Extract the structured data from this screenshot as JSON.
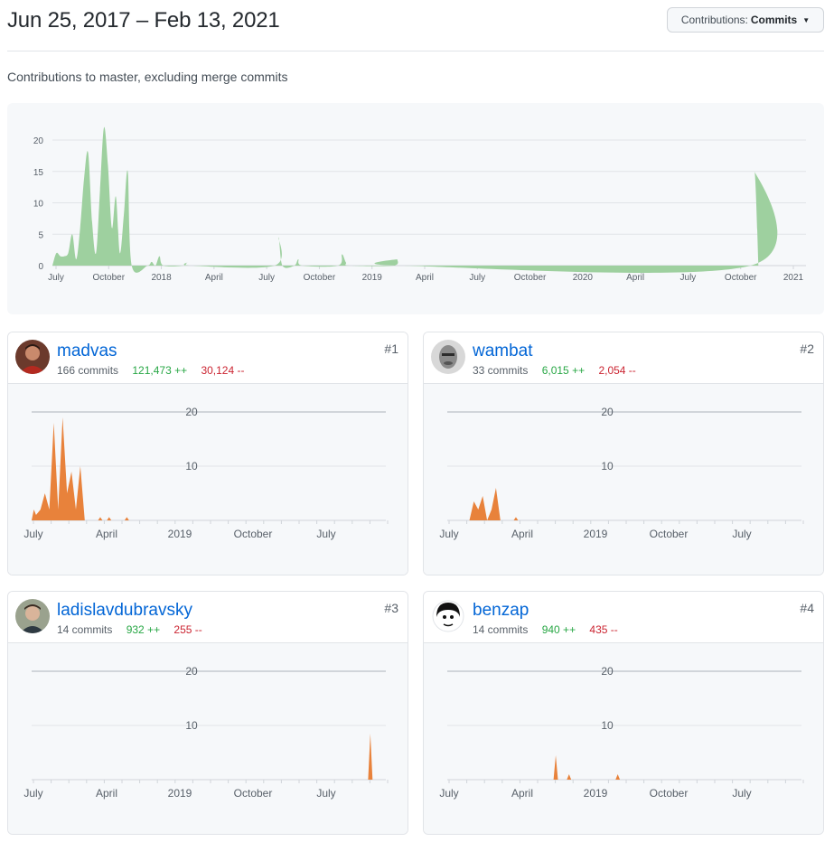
{
  "header": {
    "date_range": "Jun 25, 2017 – Feb 13, 2021",
    "contributions_label": "Contributions:",
    "contributions_value": "Commits"
  },
  "subtitle": "Contributions to master, excluding merge commits",
  "main_chart": {
    "chart_data": {
      "type": "area",
      "x_ticks": [
        "July",
        "October",
        "2018",
        "April",
        "July",
        "October",
        "2019",
        "April",
        "July",
        "October",
        "2020",
        "April",
        "July",
        "October",
        "2021"
      ],
      "y_ticks": [
        "0",
        "5",
        "10",
        "15",
        "20"
      ],
      "ylim": [
        0,
        22
      ],
      "grid": true,
      "color": "#9ed09f",
      "x_range_weeks": [
        0,
        190
      ],
      "points": [
        [
          0,
          0
        ],
        [
          1,
          2
        ],
        [
          2,
          1.5
        ],
        [
          3,
          1.5
        ],
        [
          4,
          2
        ],
        [
          5,
          5
        ],
        [
          6,
          1
        ],
        [
          7,
          6
        ],
        [
          8,
          14
        ],
        [
          9,
          18
        ],
        [
          10,
          7
        ],
        [
          11,
          2
        ],
        [
          12,
          12
        ],
        [
          13,
          22
        ],
        [
          14,
          16
        ],
        [
          15,
          6
        ],
        [
          16,
          11
        ],
        [
          17,
          2
        ],
        [
          18,
          8
        ],
        [
          19,
          15
        ],
        [
          20,
          0
        ],
        [
          24,
          0
        ],
        [
          25,
          0.6
        ],
        [
          26,
          0
        ],
        [
          27,
          1.5
        ],
        [
          28,
          0
        ],
        [
          33,
          0
        ],
        [
          34,
          0.5
        ],
        [
          35,
          0
        ],
        [
          56,
          0
        ],
        [
          57,
          4.5
        ],
        [
          58,
          0
        ],
        [
          61,
          0
        ],
        [
          62,
          1
        ],
        [
          63,
          0
        ],
        [
          72,
          0
        ],
        [
          73,
          1.8
        ],
        [
          74,
          0.5
        ],
        [
          75,
          0
        ],
        [
          86,
          0
        ],
        [
          87,
          1
        ],
        [
          88,
          0
        ],
        [
          176,
          0
        ],
        [
          177,
          15
        ],
        [
          178,
          0
        ]
      ]
    }
  },
  "contributors": [
    {
      "rank": "#1",
      "username": "madvas",
      "commits": "166 commits",
      "additions": "121,473 ++",
      "deletions": "30,124 --",
      "chart_data": {
        "type": "area",
        "x_ticks": [
          "July",
          "April",
          "2019",
          "October",
          "July"
        ],
        "y_ticks": [
          "10",
          "20"
        ],
        "ylim": [
          0,
          20
        ],
        "color": "#e8823b",
        "points": [
          [
            0,
            0
          ],
          [
            0.5,
            2
          ],
          [
            1,
            1
          ],
          [
            2,
            2
          ],
          [
            3,
            5
          ],
          [
            4,
            2
          ],
          [
            5,
            18
          ],
          [
            6,
            2
          ],
          [
            7,
            19
          ],
          [
            8,
            5
          ],
          [
            9,
            9
          ],
          [
            10,
            2
          ],
          [
            11,
            10
          ],
          [
            12,
            0
          ],
          [
            15,
            0
          ],
          [
            15.5,
            0.6
          ],
          [
            16,
            0
          ],
          [
            17,
            0
          ],
          [
            17.5,
            0.6
          ],
          [
            18,
            0
          ],
          [
            21,
            0
          ],
          [
            21.5,
            0.6
          ],
          [
            22,
            0
          ]
        ]
      }
    },
    {
      "rank": "#2",
      "username": "wambat",
      "commits": "33 commits",
      "additions": "6,015 ++",
      "deletions": "2,054 --",
      "chart_data": {
        "type": "area",
        "x_ticks": [
          "July",
          "April",
          "2019",
          "October",
          "July"
        ],
        "y_ticks": [
          "10",
          "20"
        ],
        "ylim": [
          0,
          20
        ],
        "color": "#e8823b",
        "points": [
          [
            5,
            0
          ],
          [
            6,
            3.5
          ],
          [
            7,
            2
          ],
          [
            8,
            4.5
          ],
          [
            9,
            0
          ],
          [
            10,
            2
          ],
          [
            11,
            6
          ],
          [
            12,
            0
          ],
          [
            15,
            0
          ],
          [
            15.5,
            0.6
          ],
          [
            16,
            0
          ]
        ]
      }
    },
    {
      "rank": "#3",
      "username": "ladislavdubravsky",
      "commits": "14 commits",
      "additions": "932 ++",
      "deletions": "255 --",
      "chart_data": {
        "type": "area",
        "x_ticks": [
          "July",
          "April",
          "2019",
          "October",
          "July"
        ],
        "y_ticks": [
          "10",
          "20"
        ],
        "ylim": [
          0,
          20
        ],
        "color": "#e8823b",
        "points": [
          [
            76,
            0
          ],
          [
            76.5,
            8.5
          ],
          [
            77,
            0
          ]
        ]
      }
    },
    {
      "rank": "#4",
      "username": "benzap",
      "commits": "14 commits",
      "additions": "940 ++",
      "deletions": "435 --",
      "chart_data": {
        "type": "area",
        "x_ticks": [
          "July",
          "April",
          "2019",
          "October",
          "July"
        ],
        "y_ticks": [
          "10",
          "20"
        ],
        "ylim": [
          0,
          20
        ],
        "color": "#e8823b",
        "points": [
          [
            24,
            0
          ],
          [
            24.5,
            4.5
          ],
          [
            25,
            0
          ],
          [
            27,
            0
          ],
          [
            27.5,
            1
          ],
          [
            28,
            0
          ],
          [
            38,
            0
          ],
          [
            38.5,
            1
          ],
          [
            39,
            0
          ]
        ]
      }
    }
  ]
}
